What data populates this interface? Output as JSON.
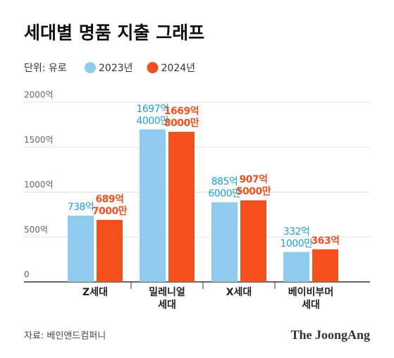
{
  "chart_data": {
    "type": "bar",
    "title": "세대별 명품 지출 그래프",
    "unit_label": "단위: 유로",
    "categories": [
      "Z세대",
      "밀레니얼\n세대",
      "X세대",
      "베이비부머\n세대"
    ],
    "series": [
      {
        "name": "2023년",
        "color": "#8ecbef",
        "label_color": "#1fa0d8",
        "values": [
          738,
          1697.4,
          885.6,
          332.1
        ],
        "value_labels": [
          "738억",
          "1697억\n4000만",
          "885억\n6000만",
          "332억\n1000만"
        ]
      },
      {
        "name": "2024년",
        "color": "#f44f1c",
        "label_color": "#f44f1c",
        "values": [
          689.7,
          1669.8,
          907.5,
          363
        ],
        "value_labels": [
          "689억\n7000만",
          "1669억\n8000만",
          "907억\n5000만",
          "363억"
        ]
      }
    ],
    "ylim": [
      0,
      2000
    ],
    "yticks": [
      0,
      {
        "value": 500,
        "label": "500억"
      },
      {
        "value": 1000,
        "label": "1000억"
      },
      {
        "value": 1500,
        "label": "1500억"
      },
      {
        "value": 2000,
        "label": "2000억"
      }
    ],
    "grid": true,
    "source": "자료: 베인앤드컴퍼니",
    "brand": "The JoongAng"
  }
}
